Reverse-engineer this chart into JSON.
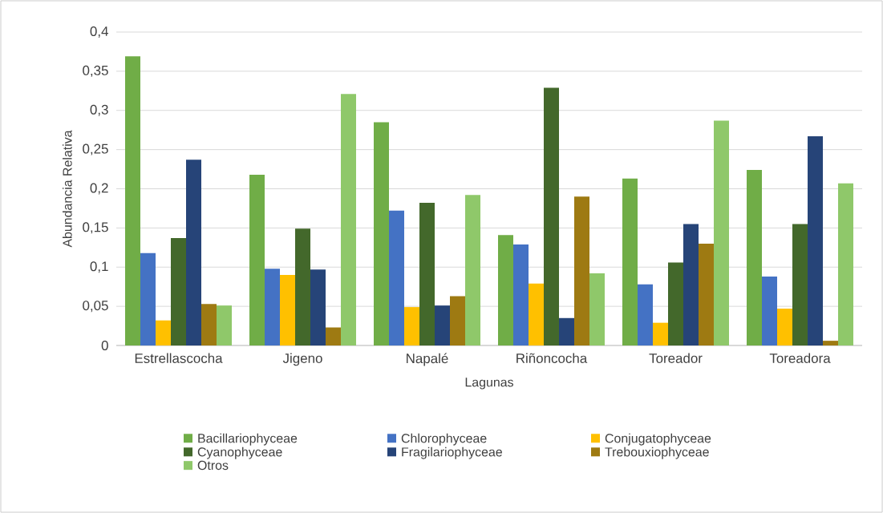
{
  "chart_data": {
    "type": "bar",
    "xlabel": "Lagunas",
    "ylabel": "Abundancia Relativa",
    "categories": [
      "Estrellascocha",
      "Jigeno",
      "Napalé",
      "Riñoncocha",
      "Toreador",
      "Toreadora"
    ],
    "series": [
      {
        "name": "Bacillariophyceae",
        "color": "#70ad47",
        "values": [
          0.369,
          0.218,
          0.285,
          0.141,
          0.213,
          0.224
        ]
      },
      {
        "name": "Chlorophyceae",
        "color": "#4472c4",
        "values": [
          0.118,
          0.098,
          0.172,
          0.129,
          0.078,
          0.088
        ]
      },
      {
        "name": "Conjugatophyceae",
        "color": "#ffc000",
        "values": [
          0.032,
          0.09,
          0.049,
          0.079,
          0.029,
          0.047
        ]
      },
      {
        "name": "Cyanophyceae",
        "color": "#43682b",
        "values": [
          0.137,
          0.149,
          0.182,
          0.329,
          0.106,
          0.155
        ]
      },
      {
        "name": "Fragilariophyceae",
        "color": "#264478",
        "values": [
          0.237,
          0.097,
          0.051,
          0.035,
          0.155,
          0.267
        ]
      },
      {
        "name": "Trebouxiophyceae",
        "color": "#9e7a12",
        "values": [
          0.053,
          0.023,
          0.063,
          0.19,
          0.13,
          0.006
        ]
      },
      {
        "name": "Otros",
        "color": "#8fc86a",
        "values": [
          0.051,
          0.321,
          0.192,
          0.092,
          0.287,
          0.207
        ]
      }
    ],
    "ylim": [
      0,
      0.4
    ],
    "yticks": [
      0,
      {
        "value": 0.05,
        "label": "0,05"
      },
      {
        "value": 0.1,
        "label": "0,1"
      },
      {
        "value": 0.15,
        "label": "0,15"
      },
      {
        "value": 0.2,
        "label": "0,2"
      },
      {
        "value": 0.25,
        "label": "0,25"
      },
      {
        "value": 0.3,
        "label": "0,3"
      },
      {
        "value": 0.35,
        "label": "0,35"
      },
      {
        "value": 0.4,
        "label": "0,4"
      }
    ],
    "grid": "y",
    "legend": "bottom"
  }
}
